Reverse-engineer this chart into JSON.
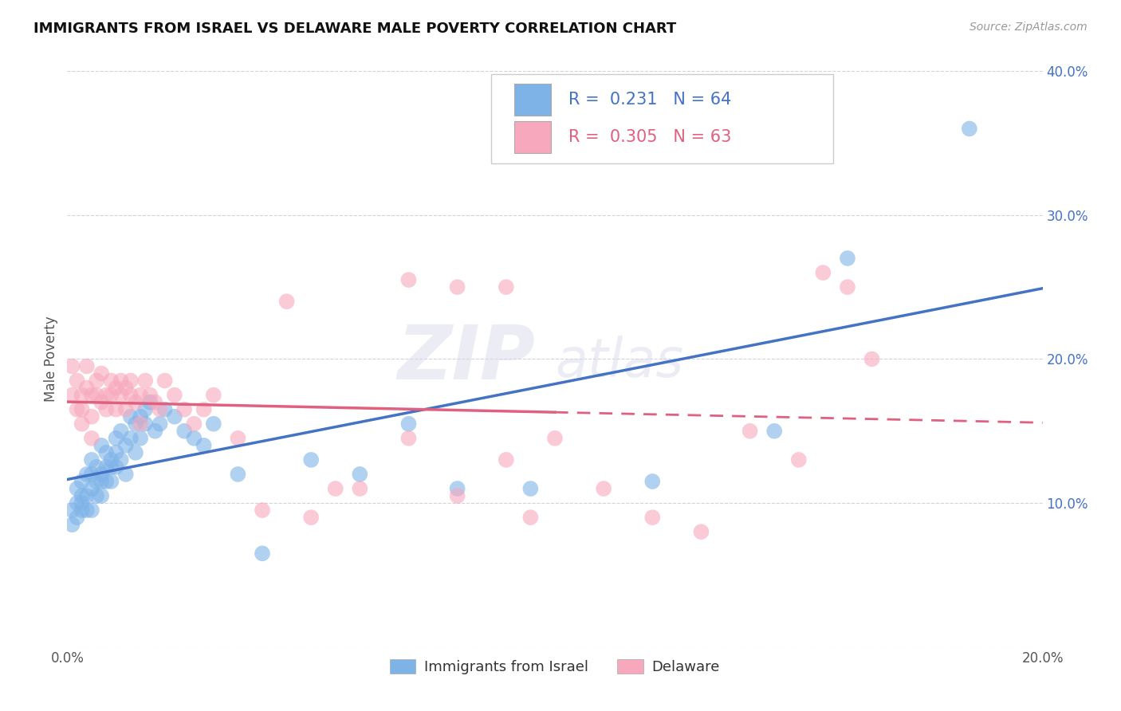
{
  "title": "IMMIGRANTS FROM ISRAEL VS DELAWARE MALE POVERTY CORRELATION CHART",
  "source": "Source: ZipAtlas.com",
  "ylabel": "Male Poverty",
  "x_min": 0.0,
  "x_max": 0.2,
  "y_min": 0.0,
  "y_max": 0.4,
  "x_ticks": [
    0.0,
    0.05,
    0.1,
    0.15,
    0.2
  ],
  "x_tick_labels": [
    "0.0%",
    "",
    "",
    "",
    "20.0%"
  ],
  "y_ticks": [
    0.0,
    0.1,
    0.2,
    0.3,
    0.4
  ],
  "y_tick_labels": [
    "",
    "10.0%",
    "20.0%",
    "30.0%",
    "40.0%"
  ],
  "blue_color": "#7EB3E8",
  "pink_color": "#F7A8BC",
  "blue_line_color": "#4472C4",
  "pink_line_color": "#E06080",
  "legend_R1": "0.231",
  "legend_N1": "64",
  "legend_R2": "0.305",
  "legend_N2": "63",
  "legend_label1": "Immigrants from Israel",
  "legend_label2": "Delaware",
  "watermark_zip": "ZIP",
  "watermark_atlas": "atlas",
  "blue_scatter_x": [
    0.001,
    0.001,
    0.002,
    0.002,
    0.002,
    0.003,
    0.003,
    0.003,
    0.003,
    0.004,
    0.004,
    0.004,
    0.005,
    0.005,
    0.005,
    0.005,
    0.006,
    0.006,
    0.006,
    0.007,
    0.007,
    0.007,
    0.007,
    0.008,
    0.008,
    0.008,
    0.009,
    0.009,
    0.009,
    0.01,
    0.01,
    0.01,
    0.011,
    0.011,
    0.012,
    0.012,
    0.013,
    0.013,
    0.014,
    0.014,
    0.015,
    0.015,
    0.016,
    0.016,
    0.017,
    0.018,
    0.019,
    0.02,
    0.022,
    0.024,
    0.026,
    0.028,
    0.03,
    0.035,
    0.04,
    0.05,
    0.06,
    0.07,
    0.08,
    0.095,
    0.12,
    0.145,
    0.16,
    0.185
  ],
  "blue_scatter_y": [
    0.085,
    0.095,
    0.1,
    0.11,
    0.09,
    0.105,
    0.095,
    0.115,
    0.1,
    0.12,
    0.095,
    0.105,
    0.13,
    0.11,
    0.095,
    0.12,
    0.125,
    0.105,
    0.115,
    0.14,
    0.115,
    0.105,
    0.12,
    0.135,
    0.115,
    0.125,
    0.13,
    0.115,
    0.125,
    0.145,
    0.125,
    0.135,
    0.15,
    0.13,
    0.14,
    0.12,
    0.16,
    0.145,
    0.155,
    0.135,
    0.16,
    0.145,
    0.165,
    0.155,
    0.17,
    0.15,
    0.155,
    0.165,
    0.16,
    0.15,
    0.145,
    0.14,
    0.155,
    0.12,
    0.065,
    0.13,
    0.12,
    0.155,
    0.11,
    0.11,
    0.115,
    0.15,
    0.27,
    0.36
  ],
  "pink_scatter_x": [
    0.001,
    0.001,
    0.002,
    0.002,
    0.003,
    0.003,
    0.003,
    0.004,
    0.004,
    0.005,
    0.005,
    0.005,
    0.006,
    0.006,
    0.007,
    0.007,
    0.008,
    0.008,
    0.009,
    0.009,
    0.01,
    0.01,
    0.011,
    0.011,
    0.012,
    0.012,
    0.013,
    0.013,
    0.014,
    0.015,
    0.015,
    0.016,
    0.017,
    0.018,
    0.019,
    0.02,
    0.022,
    0.024,
    0.026,
    0.028,
    0.03,
    0.035,
    0.04,
    0.045,
    0.05,
    0.055,
    0.06,
    0.07,
    0.08,
    0.09,
    0.095,
    0.1,
    0.11,
    0.12,
    0.13,
    0.14,
    0.15,
    0.155,
    0.16,
    0.165,
    0.07,
    0.08,
    0.09
  ],
  "pink_scatter_y": [
    0.175,
    0.195,
    0.165,
    0.185,
    0.175,
    0.155,
    0.165,
    0.195,
    0.18,
    0.175,
    0.16,
    0.145,
    0.175,
    0.185,
    0.17,
    0.19,
    0.175,
    0.165,
    0.185,
    0.175,
    0.18,
    0.165,
    0.185,
    0.175,
    0.18,
    0.165,
    0.185,
    0.175,
    0.17,
    0.175,
    0.155,
    0.185,
    0.175,
    0.17,
    0.165,
    0.185,
    0.175,
    0.165,
    0.155,
    0.165,
    0.175,
    0.145,
    0.095,
    0.24,
    0.09,
    0.11,
    0.11,
    0.145,
    0.105,
    0.13,
    0.09,
    0.145,
    0.11,
    0.09,
    0.08,
    0.15,
    0.13,
    0.26,
    0.25,
    0.2,
    0.255,
    0.25,
    0.25
  ]
}
